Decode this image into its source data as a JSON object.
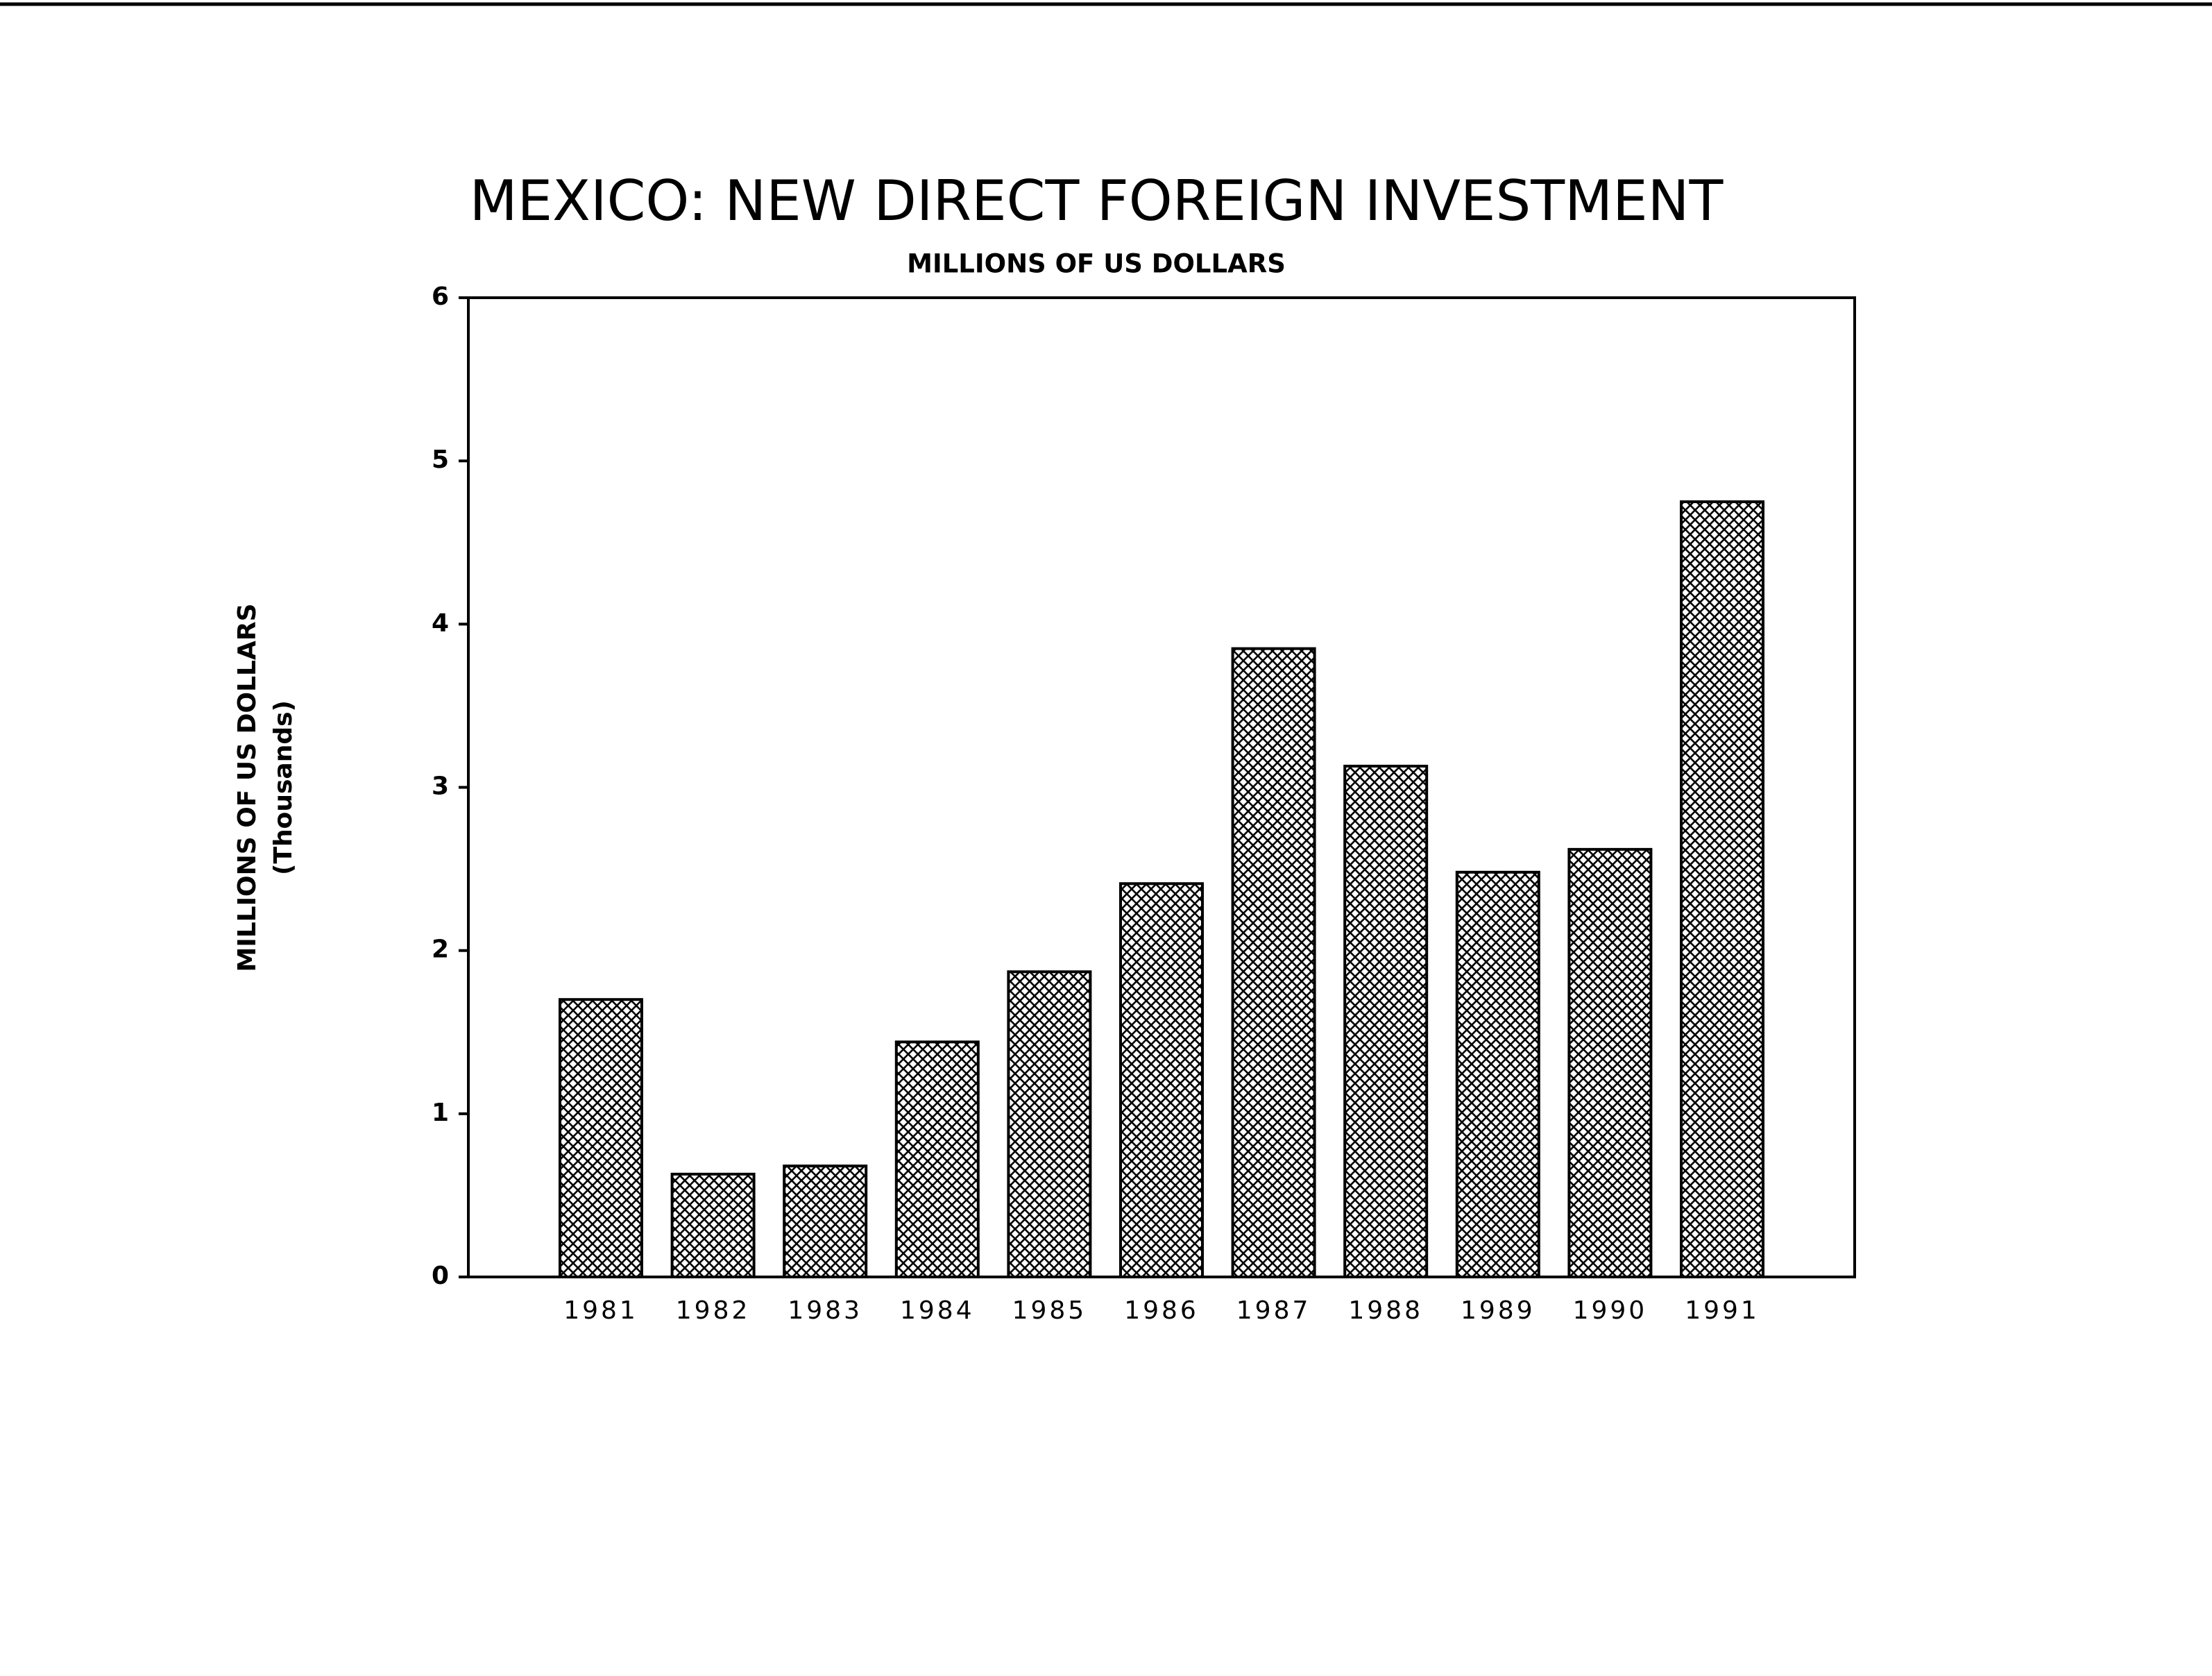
{
  "chart_data": {
    "type": "bar",
    "title": "MEXICO: NEW DIRECT FOREIGN INVESTMENT",
    "subtitle": "MILLIONS OF US DOLLARS",
    "ylabel": "MILLIONS OF US DOLLARS",
    "ylabel_note": "(Thousands)",
    "categories": [
      "1981",
      "1982",
      "1983",
      "1984",
      "1985",
      "1986",
      "1987",
      "1988",
      "1989",
      "1990",
      "1991"
    ],
    "values": [
      1.7,
      0.63,
      0.68,
      1.44,
      1.87,
      2.41,
      3.85,
      3.13,
      2.48,
      2.62,
      4.75
    ],
    "color": "#000000",
    "ylim": [
      0,
      6
    ],
    "yticks": [
      0,
      1,
      2,
      3,
      4,
      5,
      6
    ],
    "grid": false
  }
}
